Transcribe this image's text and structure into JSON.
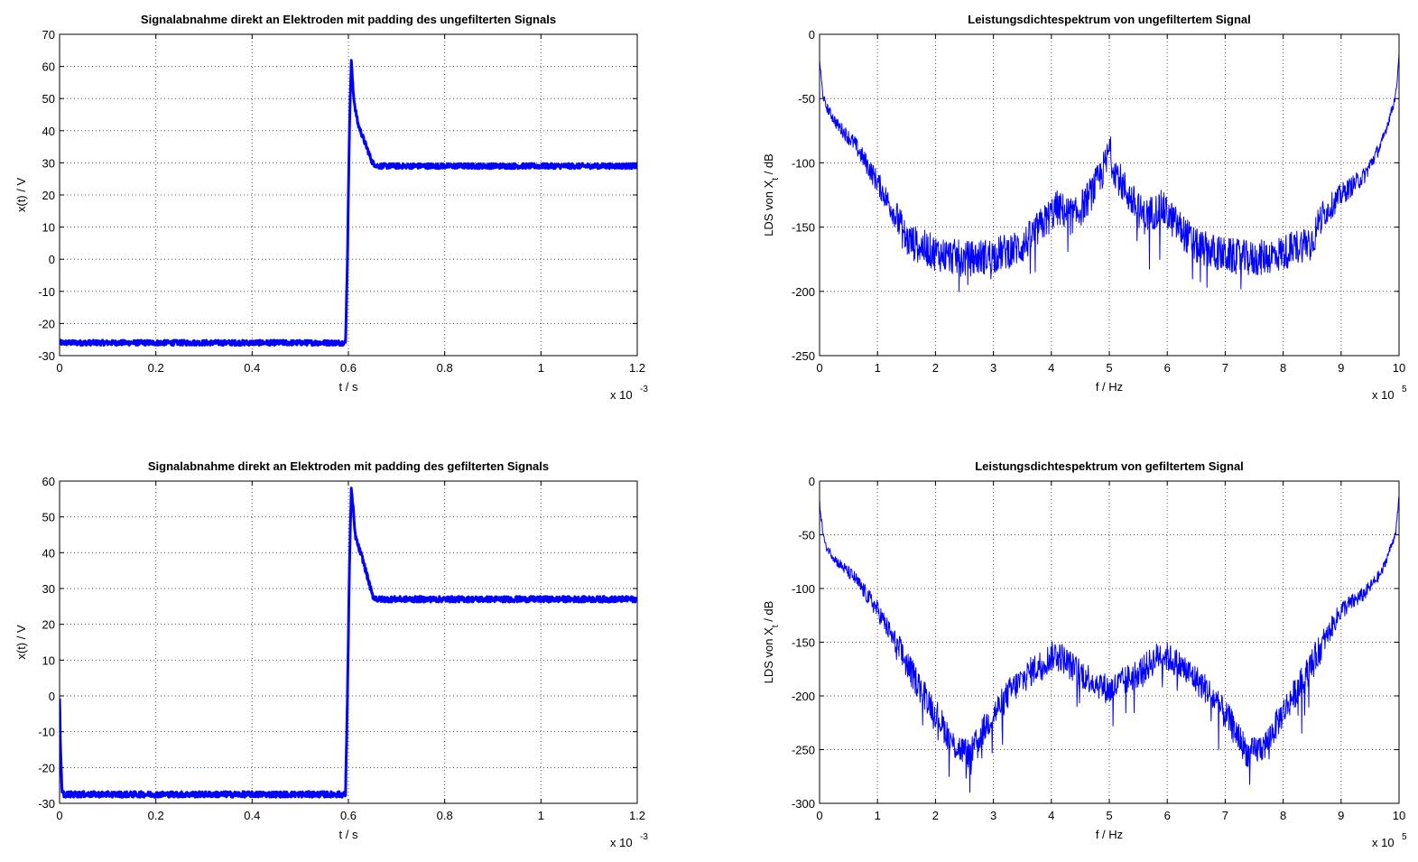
{
  "chart_data": [
    {
      "id": "p1",
      "type": "line",
      "title": "Signalabnahme direkt an Elektroden mit padding des ungefilterten Signals",
      "xlabel": "t / s",
      "ylabel": "x(t) / V",
      "xlim": [
        0,
        1.2
      ],
      "ylim": [
        -30,
        70
      ],
      "x_multiplier": "x 10",
      "x_multiplier_exp": "-3",
      "xticks": [
        "0",
        "0.2",
        "0.4",
        "0.6",
        "0.8",
        "1",
        "1.2"
      ],
      "yticks": [
        "-30",
        "-20",
        "-10",
        "0",
        "10",
        "20",
        "30",
        "40",
        "50",
        "60",
        "70"
      ],
      "grid": true,
      "color": "#0000ff",
      "series": [
        {
          "x": [
            0,
            0.1,
            0.2,
            0.3,
            0.4,
            0.5,
            0.594,
            0.598,
            0.602,
            0.606,
            0.61,
            0.614,
            0.62,
            0.63,
            0.64,
            0.65,
            0.66,
            0.8,
            1.0,
            1.2
          ],
          "values": [
            -26,
            -26,
            -26,
            -26,
            -26,
            -26,
            -26,
            0,
            40,
            62,
            52,
            47,
            42,
            38,
            34,
            30,
            29,
            29,
            29,
            29
          ]
        }
      ]
    },
    {
      "id": "p2",
      "type": "line",
      "title": "Leistungsdichtespektrum von ungefiltertem Signal",
      "xlabel": "f / Hz",
      "ylabel": "LDS von X",
      "ylabel_sub": "t",
      "ylabel_unit": " / dB",
      "xlim": [
        0,
        10
      ],
      "ylim": [
        -250,
        0
      ],
      "x_multiplier": "x 10",
      "x_multiplier_exp": "5",
      "xticks": [
        "0",
        "1",
        "2",
        "3",
        "4",
        "5",
        "6",
        "7",
        "8",
        "9",
        "10"
      ],
      "yticks": [
        "-250",
        "-200",
        "-150",
        "-100",
        "-50",
        "0"
      ],
      "grid": true,
      "color": "#0000ff",
      "series": [
        {
          "x": [
            0,
            0.05,
            0.1,
            0.3,
            0.6,
            1.0,
            1.3,
            1.5,
            2.0,
            2.5,
            3.0,
            3.5,
            3.8,
            4.1,
            4.4,
            4.6,
            4.8,
            4.95,
            5.0,
            5.05,
            5.2,
            5.4,
            5.6,
            5.9,
            6.2,
            6.5,
            7.0,
            7.5,
            8.0,
            8.5,
            8.7,
            9.0,
            9.4,
            9.7,
            9.9,
            9.95,
            10.0
          ],
          "values": [
            -20,
            -45,
            -55,
            -70,
            -85,
            -115,
            -140,
            -160,
            -170,
            -175,
            -172,
            -165,
            -150,
            -135,
            -142,
            -130,
            -115,
            -100,
            -88,
            -100,
            -115,
            -130,
            -142,
            -135,
            -150,
            -165,
            -172,
            -175,
            -170,
            -160,
            -140,
            -125,
            -110,
            -85,
            -55,
            -45,
            -15
          ]
        }
      ]
    },
    {
      "id": "p3",
      "type": "line",
      "title": "Signalabnahme direkt an Elektroden mit padding des gefilterten Signals",
      "xlabel": "t / s",
      "ylabel": "x(t) / V",
      "xlim": [
        0,
        1.2
      ],
      "ylim": [
        -30,
        60
      ],
      "x_multiplier": "x 10",
      "x_multiplier_exp": "-3",
      "xticks": [
        "0",
        "0.2",
        "0.4",
        "0.6",
        "0.8",
        "1",
        "1.2"
      ],
      "yticks": [
        "-30",
        "-20",
        "-10",
        "0",
        "10",
        "20",
        "30",
        "40",
        "50",
        "60"
      ],
      "grid": true,
      "color": "#0000ff",
      "series": [
        {
          "x": [
            0,
            0.002,
            0.005,
            0.01,
            0.1,
            0.2,
            0.3,
            0.4,
            0.5,
            0.594,
            0.598,
            0.602,
            0.606,
            0.61,
            0.614,
            0.62,
            0.63,
            0.64,
            0.65,
            0.66,
            0.8,
            1.0,
            1.2
          ],
          "values": [
            0,
            -15,
            -27,
            -27.5,
            -27.5,
            -27.5,
            -27.5,
            -27.5,
            -27.5,
            -27.5,
            0,
            35,
            58,
            52,
            45,
            42,
            38,
            33,
            28,
            27,
            27,
            27,
            27
          ]
        }
      ]
    },
    {
      "id": "p4",
      "type": "line",
      "title": "Leistungsdichtespektrum von gefiltertem Signal",
      "xlabel": "f / Hz",
      "ylabel": "LDS von X",
      "ylabel_sub": "t",
      "ylabel_unit": " / dB",
      "xlim": [
        0,
        10
      ],
      "ylim": [
        -300,
        0
      ],
      "x_multiplier": "x 10",
      "x_multiplier_exp": "5",
      "xticks": [
        "0",
        "1",
        "2",
        "3",
        "4",
        "5",
        "6",
        "7",
        "8",
        "9",
        "10"
      ],
      "yticks": [
        "-300",
        "-250",
        "-200",
        "-150",
        "-100",
        "-50",
        "0"
      ],
      "grid": true,
      "color": "#0000ff",
      "series": [
        {
          "x": [
            0,
            0.05,
            0.1,
            0.3,
            0.6,
            1.0,
            1.3,
            1.6,
            2.0,
            2.3,
            2.6,
            2.9,
            3.3,
            3.7,
            4.1,
            4.4,
            4.7,
            5.0,
            5.3,
            5.6,
            5.9,
            6.3,
            6.7,
            7.1,
            7.4,
            7.7,
            8.0,
            8.4,
            8.7,
            9.0,
            9.4,
            9.7,
            9.9,
            9.95,
            10.0
          ],
          "values": [
            -20,
            -45,
            -60,
            -75,
            -90,
            -120,
            -150,
            -180,
            -215,
            -245,
            -255,
            -225,
            -195,
            -175,
            -160,
            -175,
            -185,
            -195,
            -185,
            -175,
            -160,
            -175,
            -195,
            -225,
            -255,
            -245,
            -215,
            -180,
            -150,
            -120,
            -105,
            -85,
            -55,
            -45,
            -15
          ]
        }
      ]
    }
  ]
}
